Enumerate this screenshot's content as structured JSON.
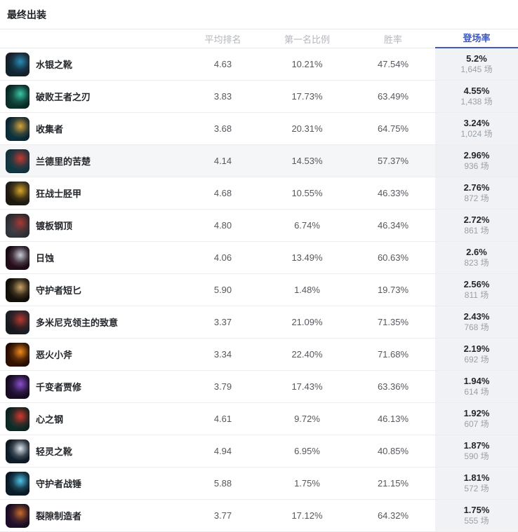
{
  "title": "最终出装",
  "accent_color": "#3c59c2",
  "pick_column_bg": "#f1f2f5",
  "hover_row_index": 3,
  "columns": {
    "avg_rank": "平均排名",
    "first_rate": "第一名比例",
    "win_rate": "胜率",
    "pick_rate": "登场率",
    "active_column": "pick_rate"
  },
  "games_unit": "场",
  "rows": [
    {
      "name": "水银之靴",
      "icon": "mercury-treads-icon",
      "icon_colors": [
        "#0d2735",
        "#2a8bb5",
        "#1a1d24"
      ],
      "avg_rank": "4.63",
      "first_rate": "10.21%",
      "win_rate": "47.54%",
      "pick_rate": "5.2%",
      "games": "1,645 场"
    },
    {
      "name": "破败王者之刃",
      "icon": "blade-of-the-ruined-king-icon",
      "icon_colors": [
        "#0e3b33",
        "#39c7a5",
        "#071e1c"
      ],
      "avg_rank": "3.83",
      "first_rate": "17.73%",
      "win_rate": "63.49%",
      "pick_rate": "4.55%",
      "games": "1,438 场"
    },
    {
      "name": "收集者",
      "icon": "collector-icon",
      "icon_colors": [
        "#0c3440",
        "#d8a43c",
        "#0a2030"
      ],
      "avg_rank": "3.68",
      "first_rate": "20.31%",
      "win_rate": "64.75%",
      "pick_rate": "3.24%",
      "games": "1,024 场"
    },
    {
      "name": "兰德里的苦楚",
      "icon": "liandrys-torment-icon",
      "icon_colors": [
        "#0e3a45",
        "#c43a2f",
        "#14303c"
      ],
      "avg_rank": "4.14",
      "first_rate": "14.53%",
      "win_rate": "57.37%",
      "pick_rate": "2.96%",
      "games": "936 场"
    },
    {
      "name": "狂战士胫甲",
      "icon": "berserkers-greaves-icon",
      "icon_colors": [
        "#1a150c",
        "#d9a62a",
        "#23201a"
      ],
      "avg_rank": "4.68",
      "first_rate": "10.55%",
      "win_rate": "46.33%",
      "pick_rate": "2.76%",
      "games": "872 场"
    },
    {
      "name": "镀板钢顶",
      "icon": "plated-steelcaps-icon",
      "icon_colors": [
        "#3a3f46",
        "#a83832",
        "#23262b"
      ],
      "avg_rank": "4.80",
      "first_rate": "6.74%",
      "win_rate": "46.34%",
      "pick_rate": "2.72%",
      "games": "861 场"
    },
    {
      "name": "日蚀",
      "icon": "eclipse-icon",
      "icon_colors": [
        "#2a0f1c",
        "#c9cdd6",
        "#140812"
      ],
      "avg_rank": "4.06",
      "first_rate": "13.49%",
      "win_rate": "60.63%",
      "pick_rate": "2.6%",
      "games": "823 场"
    },
    {
      "name": "守护者短匕",
      "icon": "guardians-dirk-icon",
      "icon_colors": [
        "#17120b",
        "#caa368",
        "#0e0c08"
      ],
      "avg_rank": "5.90",
      "first_rate": "1.48%",
      "win_rate": "19.73%",
      "pick_rate": "2.56%",
      "games": "811 场"
    },
    {
      "name": "多米尼克领主的致意",
      "icon": "lord-dominiks-regards-icon",
      "icon_colors": [
        "#14161c",
        "#b8392f",
        "#1e232c"
      ],
      "avg_rank": "3.37",
      "first_rate": "21.09%",
      "win_rate": "71.35%",
      "pick_rate": "2.43%",
      "games": "768 场"
    },
    {
      "name": "恶火小斧",
      "icon": "hellfire-hatchet-icon",
      "icon_colors": [
        "#3a1403",
        "#f08a1d",
        "#1c0a02"
      ],
      "avg_rank": "3.34",
      "first_rate": "22.40%",
      "win_rate": "71.68%",
      "pick_rate": "2.19%",
      "games": "692 场"
    },
    {
      "name": "千变者贾修",
      "icon": "qianbianzhe-jiaxiu-icon",
      "icon_colors": [
        "#1d0f2b",
        "#8a4fd0",
        "#120a1c"
      ],
      "avg_rank": "3.79",
      "first_rate": "17.43%",
      "win_rate": "63.36%",
      "pick_rate": "1.94%",
      "games": "614 场"
    },
    {
      "name": "心之钢",
      "icon": "heartsteel-icon",
      "icon_colors": [
        "#0f2f2a",
        "#d7372f",
        "#0a1f1d"
      ],
      "avg_rank": "4.61",
      "first_rate": "9.72%",
      "win_rate": "46.13%",
      "pick_rate": "1.92%",
      "games": "607 场"
    },
    {
      "name": "轻灵之靴",
      "icon": "swift-boots-icon",
      "icon_colors": [
        "#10202e",
        "#dfe6ee",
        "#0c1620"
      ],
      "avg_rank": "4.94",
      "first_rate": "6.95%",
      "win_rate": "40.85%",
      "pick_rate": "1.87%",
      "games": "590 场"
    },
    {
      "name": "守护者战锤",
      "icon": "guardians-hammer-icon",
      "icon_colors": [
        "#0c1f2c",
        "#4fc3e8",
        "#081722"
      ],
      "avg_rank": "5.88",
      "first_rate": "1.75%",
      "win_rate": "21.15%",
      "pick_rate": "1.81%",
      "games": "572 场"
    },
    {
      "name": "裂隙制造者",
      "icon": "riftmaker-icon",
      "icon_colors": [
        "#220f2e",
        "#c76b2a",
        "#150a1e"
      ],
      "avg_rank": "3.77",
      "first_rate": "17.12%",
      "win_rate": "64.32%",
      "pick_rate": "1.75%",
      "games": "555 场"
    }
  ]
}
